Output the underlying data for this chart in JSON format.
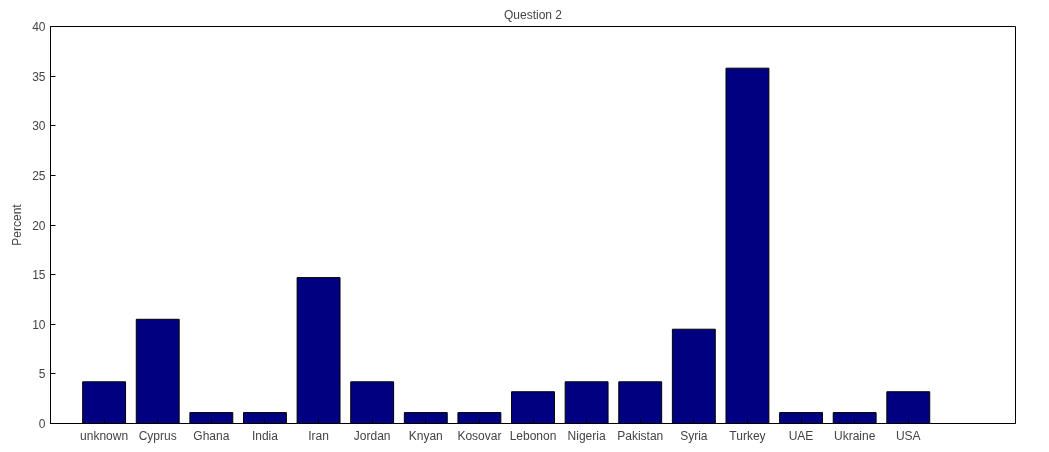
{
  "chart_data": {
    "type": "bar",
    "title": "Question 2",
    "ylabel": "Percent",
    "categories": [
      "unknown",
      "Cyprus",
      "Ghana",
      "India",
      "Iran",
      "Jordan",
      "Knyan",
      "Kosovar",
      "Lebonon",
      "Nigeria",
      "Pakistan",
      "Syria",
      "Turkey",
      "UAE",
      "Ukraine",
      "USA"
    ],
    "values": [
      4.2,
      10.5,
      1.1,
      1.1,
      14.7,
      4.2,
      1.1,
      1.1,
      3.2,
      4.2,
      4.2,
      9.5,
      35.8,
      1.1,
      1.1,
      3.2
    ],
    "color": "#000080",
    "ylim": [
      0,
      40
    ],
    "yticks": [
      0,
      5,
      10,
      15,
      20,
      25,
      30,
      35,
      40
    ],
    "grid": false
  }
}
